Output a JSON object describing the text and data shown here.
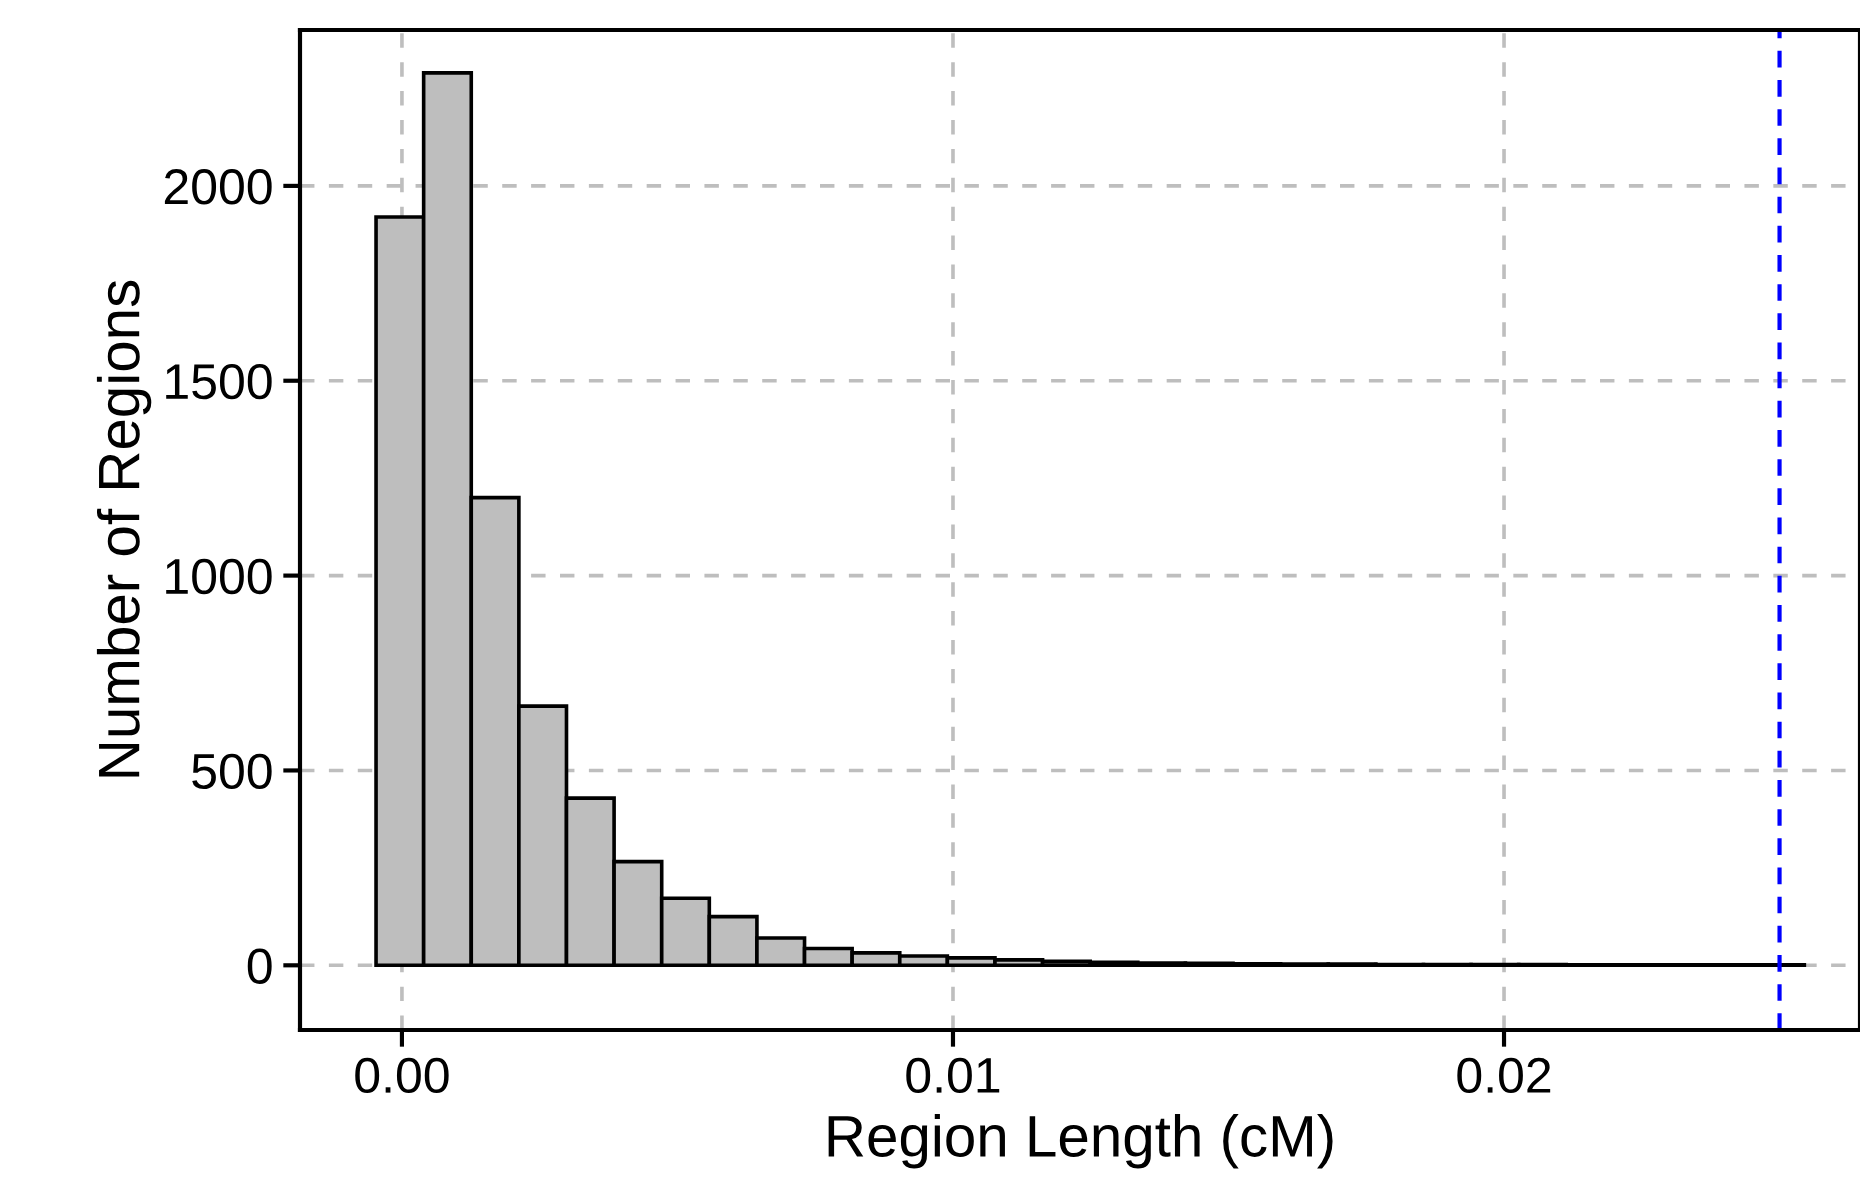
{
  "chart_data": {
    "type": "histogram",
    "xlabel": "Region Length (cM)",
    "ylabel": "Number of Regions",
    "bins": [
      -0.00047,
      0.000394,
      0.001258,
      0.002122,
      0.002986,
      0.00385,
      0.004714,
      0.005578,
      0.006442,
      0.007306,
      0.00817,
      0.009034,
      0.009898,
      0.010762,
      0.011626,
      0.01249,
      0.013354,
      0.014218,
      0.015082,
      0.015946,
      0.01681,
      0.017674,
      0.018538,
      0.019402,
      0.020266,
      0.02113,
      0.021994,
      0.022858,
      0.023722,
      0.024586,
      0.02545
    ],
    "values": [
      1920,
      2290,
      1200,
      665,
      429,
      266,
      172,
      125,
      70,
      43,
      32,
      24,
      19,
      14,
      10,
      8,
      6,
      5,
      4,
      3,
      3,
      2,
      2,
      2,
      2,
      1,
      1,
      1,
      1,
      1
    ],
    "color": "#bebebe",
    "xlim": [
      -0.00185,
      0.02646
    ],
    "ylim": [
      -166,
      2400
    ],
    "xticks": [
      {
        "value": 0,
        "label": "0.00"
      },
      {
        "value": 0.01,
        "label": "0.01"
      },
      {
        "value": 0.02,
        "label": "0.02"
      }
    ],
    "yticks": [
      0,
      500,
      1000,
      1500,
      2000
    ],
    "grid": true,
    "ref_lines": [
      {
        "axis": "x",
        "value": 0.025,
        "color": "#0000ff",
        "line_style": "dashed"
      }
    ]
  }
}
